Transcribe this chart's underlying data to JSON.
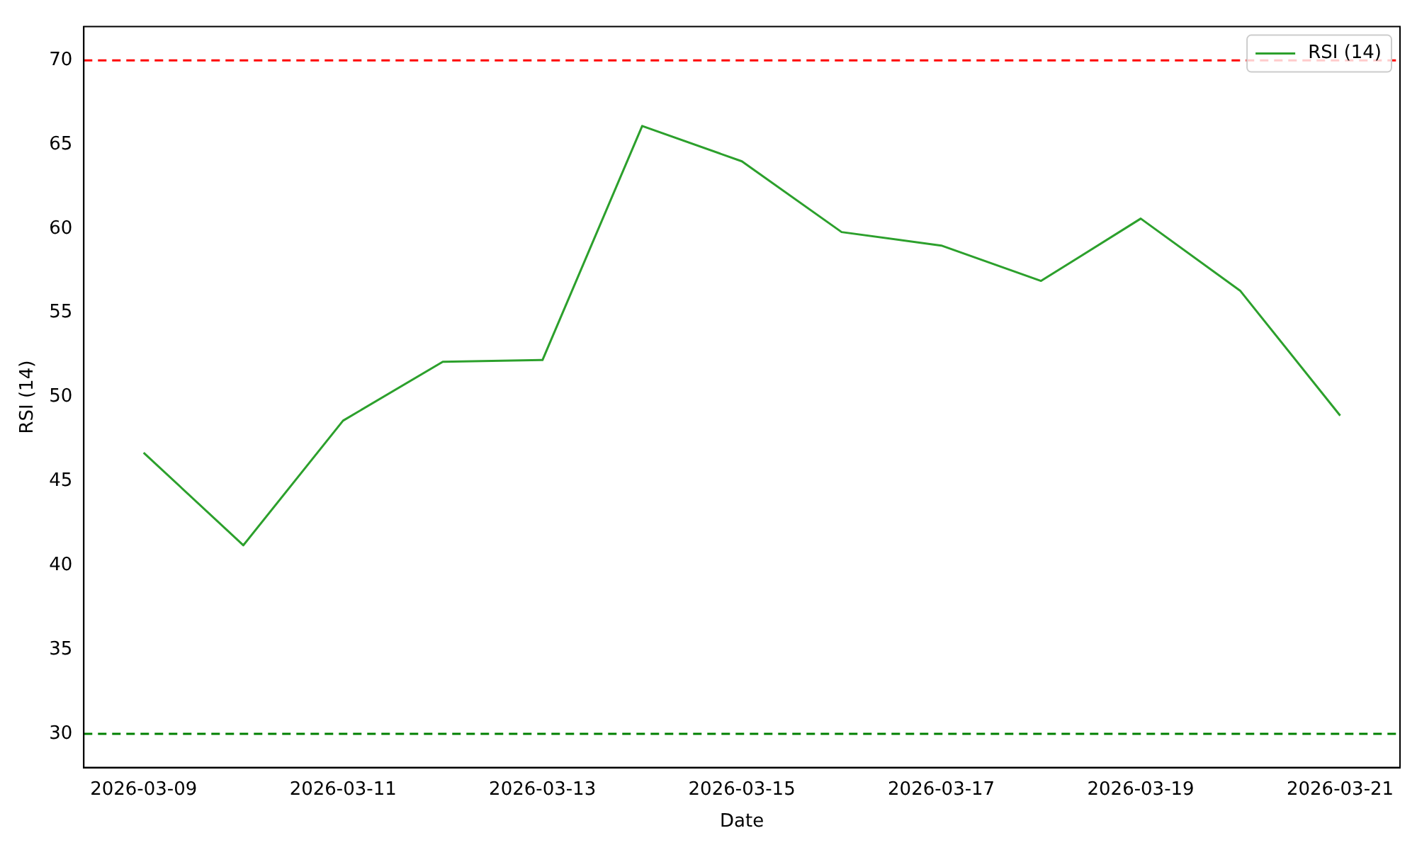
{
  "chart_data": {
    "type": "line",
    "xlabel": "Date",
    "ylabel": "RSI (14)",
    "x": [
      "2026-03-09",
      "2026-03-10",
      "2026-03-11",
      "2026-03-12",
      "2026-03-13",
      "2026-03-14",
      "2026-03-15",
      "2026-03-16",
      "2026-03-17",
      "2026-03-18",
      "2026-03-19",
      "2026-03-20",
      "2026-03-21"
    ],
    "series": [
      {
        "name": "RSI (14)",
        "color": "#2ca02c",
        "values": [
          46.7,
          41.2,
          48.6,
          52.1,
          52.2,
          66.1,
          64.0,
          59.8,
          59.0,
          56.9,
          60.6,
          56.3,
          48.9
        ]
      }
    ],
    "xlim": [
      "2026-03-08T09:36",
      "2026-03-21T14:24"
    ],
    "xticks": [
      "2026-03-09",
      "2026-03-11",
      "2026-03-13",
      "2026-03-15",
      "2026-03-17",
      "2026-03-19",
      "2026-03-21"
    ],
    "ylim": [
      28,
      72
    ],
    "yticks": [
      30,
      35,
      40,
      45,
      50,
      55,
      60,
      65,
      70
    ],
    "ref_lines": [
      {
        "axis": "y",
        "value": 70,
        "color": "#ff0000",
        "line_style": "dashed"
      },
      {
        "axis": "y",
        "value": 30,
        "color": "#008000",
        "line_style": "dashed"
      }
    ],
    "legend": "top right",
    "grid": false,
    "marker": "none",
    "line_style": "solid"
  }
}
